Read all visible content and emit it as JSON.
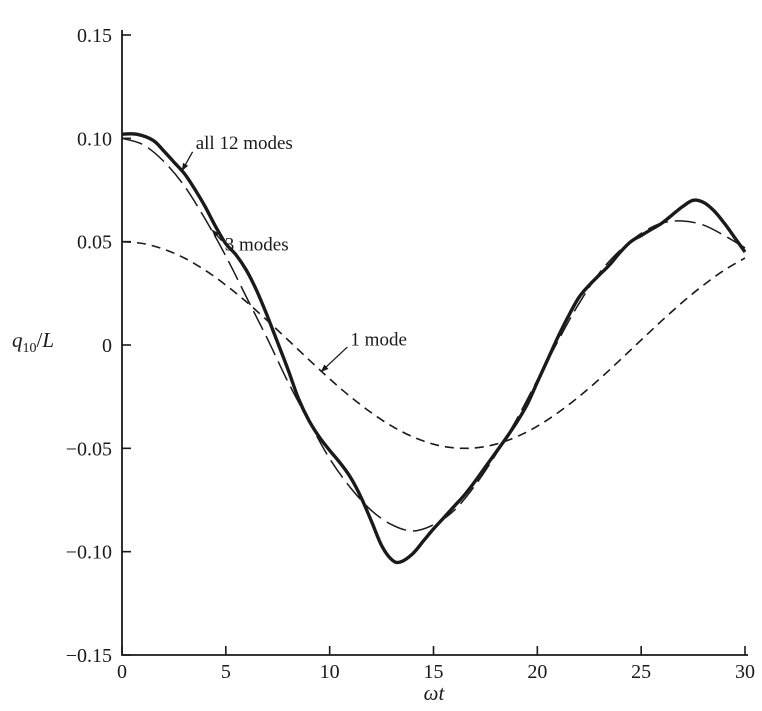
{
  "figure": {
    "background": "#ffffff",
    "ink": "#1a1a1a"
  },
  "chart_data": {
    "type": "line",
    "title": "",
    "xlabel": "ωt",
    "ylabel": "q10/L",
    "ylabel_parts": {
      "var": "q",
      "sub": "10",
      "slash": "/",
      "den": "L"
    },
    "grid": false,
    "legend_position": "inline-annotations",
    "x": {
      "min": 0,
      "max": 30,
      "ticks": [
        0,
        5,
        10,
        15,
        20,
        25,
        30
      ],
      "tick_labels": [
        "0",
        "5",
        "10",
        "15",
        "20",
        "25",
        "30"
      ]
    },
    "y": {
      "min": -0.15,
      "max": 0.15,
      "ticks": [
        0.15,
        0.1,
        0.05,
        0,
        -0.05,
        -0.1,
        -0.15
      ],
      "tick_labels": [
        "0.15",
        "0.10",
        "0.05",
        "0",
        "−0.05",
        "−0.10",
        "−0.15"
      ]
    },
    "series": [
      {
        "name": "all 12 modes",
        "line_style": "solid",
        "width": 3.4,
        "dash": null,
        "points": [
          [
            0,
            0.102
          ],
          [
            0.7,
            0.102
          ],
          [
            1.5,
            0.099
          ],
          [
            2,
            0.094
          ],
          [
            2.5,
            0.0885
          ],
          [
            3,
            0.083
          ],
          [
            3.5,
            0.0755
          ],
          [
            4,
            0.067
          ],
          [
            4.5,
            0.0575
          ],
          [
            5,
            0.049
          ],
          [
            5.5,
            0.0435
          ],
          [
            6,
            0.036
          ],
          [
            6.5,
            0.026
          ],
          [
            7,
            0.014
          ],
          [
            7.5,
            0.001
          ],
          [
            8,
            -0.012
          ],
          [
            8.5,
            -0.026
          ],
          [
            9,
            -0.0365
          ],
          [
            9.5,
            -0.0445
          ],
          [
            10,
            -0.051
          ],
          [
            10.5,
            -0.057
          ],
          [
            11,
            -0.064
          ],
          [
            11.5,
            -0.0735
          ],
          [
            12,
            -0.085
          ],
          [
            12.5,
            -0.097
          ],
          [
            13,
            -0.104
          ],
          [
            13.4,
            -0.105
          ],
          [
            14,
            -0.101
          ],
          [
            14.5,
            -0.095
          ],
          [
            15,
            -0.089
          ],
          [
            15.5,
            -0.0835
          ],
          [
            16,
            -0.078
          ],
          [
            16.5,
            -0.0725
          ],
          [
            17,
            -0.066
          ],
          [
            17.5,
            -0.059
          ],
          [
            18,
            -0.052
          ],
          [
            18.5,
            -0.045
          ],
          [
            19,
            -0.0375
          ],
          [
            19.5,
            -0.029
          ],
          [
            20,
            -0.018
          ],
          [
            20.5,
            -0.007
          ],
          [
            21,
            0.004
          ],
          [
            21.5,
            0.014
          ],
          [
            22,
            0.023
          ],
          [
            22.5,
            0.029
          ],
          [
            23,
            0.034
          ],
          [
            23.5,
            0.039
          ],
          [
            24,
            0.045
          ],
          [
            24.5,
            0.05
          ],
          [
            25,
            0.053
          ],
          [
            25.5,
            0.056
          ],
          [
            26,
            0.059
          ],
          [
            26.5,
            0.063
          ],
          [
            27,
            0.067
          ],
          [
            27.5,
            0.07
          ],
          [
            28,
            0.069
          ],
          [
            28.5,
            0.065
          ],
          [
            29,
            0.059
          ],
          [
            29.5,
            0.052
          ],
          [
            30,
            0.045
          ]
        ]
      },
      {
        "name": "3 modes",
        "line_style": "long-dash",
        "width": 1.5,
        "dash": [
          21,
          7
        ],
        "points": [
          [
            0,
            0.1
          ],
          [
            1,
            0.097
          ],
          [
            2,
            0.089
          ],
          [
            3,
            0.077
          ],
          [
            4,
            0.061
          ],
          [
            5,
            0.043
          ],
          [
            6,
            0.023
          ],
          [
            7,
            0.003
          ],
          [
            8,
            -0.018
          ],
          [
            9,
            -0.037
          ],
          [
            10,
            -0.055
          ],
          [
            11,
            -0.069
          ],
          [
            12,
            -0.08
          ],
          [
            13,
            -0.087
          ],
          [
            14,
            -0.09
          ],
          [
            15,
            -0.087
          ],
          [
            16,
            -0.08
          ],
          [
            17,
            -0.068
          ],
          [
            18,
            -0.053
          ],
          [
            19,
            -0.036
          ],
          [
            20,
            -0.017
          ],
          [
            21,
            0.002
          ],
          [
            22,
            0.02
          ],
          [
            23,
            0.035
          ],
          [
            24,
            0.046
          ],
          [
            25,
            0.054
          ],
          [
            26,
            0.059
          ],
          [
            27,
            0.06
          ],
          [
            28,
            0.058
          ],
          [
            29,
            0.053
          ],
          [
            30,
            0.047
          ]
        ]
      },
      {
        "name": "1 mode",
        "line_style": "dash",
        "width": 1.6,
        "dash": [
          9,
          6
        ],
        "points": [
          [
            0,
            0.05
          ],
          [
            1,
            0.0491
          ],
          [
            2,
            0.0464
          ],
          [
            3,
            0.0421
          ],
          [
            4,
            0.0362
          ],
          [
            5,
            0.029
          ],
          [
            6,
            0.0208
          ],
          [
            7,
            0.0118
          ],
          [
            8,
            0.0024
          ],
          [
            9,
            -0.0071
          ],
          [
            10,
            -0.0164
          ],
          [
            11,
            -0.025
          ],
          [
            12,
            -0.0327
          ],
          [
            13,
            -0.0393
          ],
          [
            14,
            -0.0444
          ],
          [
            15,
            -0.048
          ],
          [
            16,
            -0.0498
          ],
          [
            17,
            -0.0498
          ],
          [
            18,
            -0.048
          ],
          [
            19,
            -0.0444
          ],
          [
            20,
            -0.0393
          ],
          [
            21,
            -0.0327
          ],
          [
            22,
            -0.025
          ],
          [
            23,
            -0.0164
          ],
          [
            24,
            -0.0071
          ],
          [
            25,
            0.0024
          ],
          [
            26,
            0.0118
          ],
          [
            27,
            0.0208
          ],
          [
            28,
            0.029
          ],
          [
            29,
            0.0362
          ],
          [
            30,
            0.0421
          ]
        ]
      }
    ],
    "annotations": [
      {
        "text": "all 12 modes",
        "tx": 3.55,
        "ty": 0.098,
        "ax": 3.4,
        "ay": 0.0935,
        "bx": 2.9,
        "by": 0.0845
      },
      {
        "text": "3 modes",
        "tx": 4.95,
        "ty": 0.049,
        "ax": 4.8,
        "ay": 0.0505,
        "bx": 4.35,
        "by": 0.0555
      },
      {
        "text": "1 mode",
        "tx": 11.0,
        "ty": 0.003,
        "ax": 10.85,
        "ay": -0.001,
        "bx": 9.6,
        "by": -0.0128
      }
    ]
  }
}
